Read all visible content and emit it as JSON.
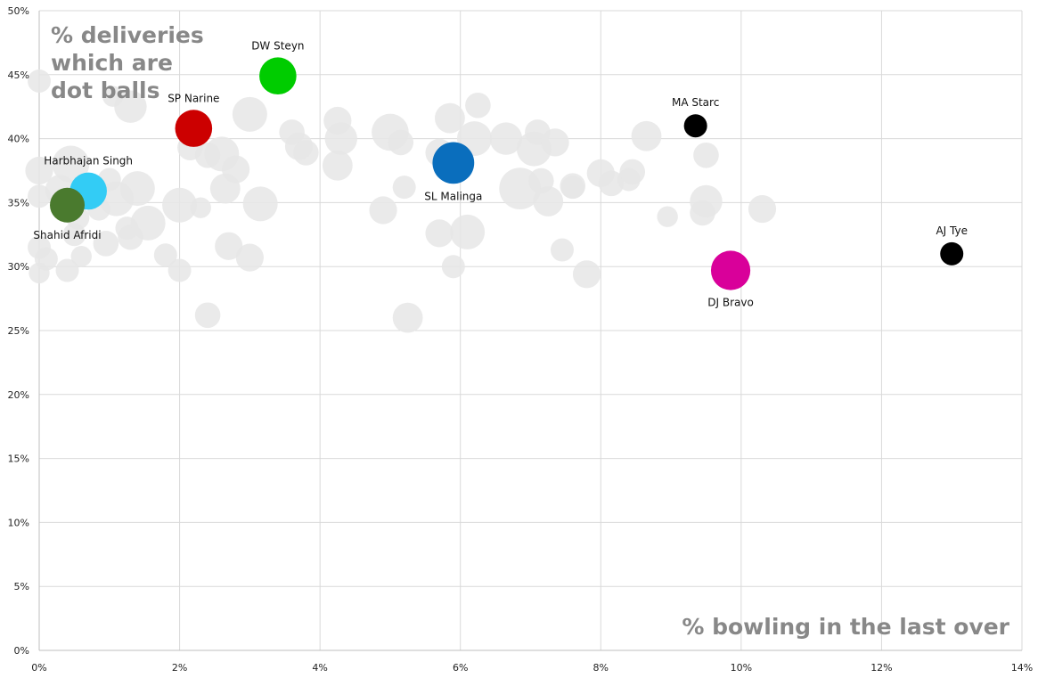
{
  "chart_data": {
    "type": "scatter",
    "title_lines": [
      "% deliveries",
      "which are",
      "dot balls"
    ],
    "xlabel": "% bowling in the last over",
    "ylabel": "% deliveries which are dot balls",
    "xlim": [
      0,
      14
    ],
    "ylim": [
      0,
      50
    ],
    "x_ticks": [
      0,
      2,
      4,
      6,
      8,
      10,
      12,
      14
    ],
    "y_ticks": [
      0,
      5,
      10,
      15,
      20,
      25,
      30,
      35,
      40,
      45,
      50
    ],
    "x_tick_labels": [
      "0%",
      "2%",
      "4%",
      "6%",
      "8%",
      "10%",
      "12%",
      "14%"
    ],
    "y_tick_labels": [
      "0%",
      "5%",
      "10%",
      "15%",
      "20%",
      "25%",
      "30%",
      "35%",
      "40%",
      "45%",
      "50%"
    ],
    "grid": true,
    "background_color": "#e6e6e6",
    "highlighted": [
      {
        "name": "DW Steyn",
        "x": 3.4,
        "y": 44.9,
        "size": 1.6,
        "color": "#00cc00",
        "label_pos": "above"
      },
      {
        "name": "SP Narine",
        "x": 2.2,
        "y": 40.8,
        "size": 1.6,
        "color": "#cc0000",
        "label_pos": "above"
      },
      {
        "name": "Harbhajan Singh",
        "x": 0.7,
        "y": 35.9,
        "size": 1.6,
        "color": "#33ccf5",
        "label_pos": "above"
      },
      {
        "name": "Shahid Afridi",
        "x": 0.4,
        "y": 34.8,
        "size": 1.5,
        "color": "#4a7a2e",
        "label_pos": "below"
      },
      {
        "name": "SL Malinga",
        "x": 5.9,
        "y": 38.1,
        "size": 1.8,
        "color": "#0a6ebd",
        "label_pos": "below"
      },
      {
        "name": "MA Starc",
        "x": 9.35,
        "y": 41.0,
        "size": 1.0,
        "color": "#000000",
        "label_pos": "above"
      },
      {
        "name": "DJ Bravo",
        "x": 9.85,
        "y": 29.7,
        "size": 1.7,
        "color": "#d9009a",
        "label_pos": "below"
      },
      {
        "name": "AJ Tye",
        "x": 13.0,
        "y": 31.0,
        "size": 1.0,
        "color": "#000000",
        "label_pos": "above"
      }
    ],
    "background_points": [
      {
        "x": 0.0,
        "y": 44.5,
        "size": 1.0
      },
      {
        "x": 0.0,
        "y": 37.5,
        "size": 1.2
      },
      {
        "x": 0.0,
        "y": 35.5,
        "size": 1.0
      },
      {
        "x": 0.0,
        "y": 31.5,
        "size": 1.0
      },
      {
        "x": 0.0,
        "y": 29.5,
        "size": 0.9
      },
      {
        "x": 0.1,
        "y": 30.6,
        "size": 1.0
      },
      {
        "x": 0.3,
        "y": 36.0,
        "size": 1.3
      },
      {
        "x": 0.45,
        "y": 38.0,
        "size": 1.6
      },
      {
        "x": 0.4,
        "y": 29.7,
        "size": 1.0
      },
      {
        "x": 0.5,
        "y": 32.5,
        "size": 1.0
      },
      {
        "x": 0.6,
        "y": 30.8,
        "size": 0.9
      },
      {
        "x": 0.55,
        "y": 33.8,
        "size": 1.0
      },
      {
        "x": 0.85,
        "y": 34.5,
        "size": 1.0
      },
      {
        "x": 0.95,
        "y": 31.8,
        "size": 1.1
      },
      {
        "x": 1.0,
        "y": 36.8,
        "size": 1.0
      },
      {
        "x": 1.05,
        "y": 43.3,
        "size": 0.9
      },
      {
        "x": 1.1,
        "y": 35.3,
        "size": 1.5
      },
      {
        "x": 1.3,
        "y": 42.5,
        "size": 1.4
      },
      {
        "x": 1.3,
        "y": 32.3,
        "size": 1.1
      },
      {
        "x": 1.25,
        "y": 33.0,
        "size": 1.0
      },
      {
        "x": 1.4,
        "y": 36.1,
        "size": 1.5
      },
      {
        "x": 1.55,
        "y": 33.4,
        "size": 1.5
      },
      {
        "x": 1.8,
        "y": 30.9,
        "size": 1.0
      },
      {
        "x": 2.0,
        "y": 34.8,
        "size": 1.5
      },
      {
        "x": 2.0,
        "y": 29.7,
        "size": 1.0
      },
      {
        "x": 2.15,
        "y": 39.3,
        "size": 1.1
      },
      {
        "x": 2.3,
        "y": 34.6,
        "size": 0.9
      },
      {
        "x": 2.4,
        "y": 26.2,
        "size": 1.1
      },
      {
        "x": 2.4,
        "y": 38.7,
        "size": 1.1
      },
      {
        "x": 2.6,
        "y": 38.8,
        "size": 1.5
      },
      {
        "x": 2.65,
        "y": 36.1,
        "size": 1.3
      },
      {
        "x": 2.7,
        "y": 31.6,
        "size": 1.2
      },
      {
        "x": 2.8,
        "y": 37.6,
        "size": 1.2
      },
      {
        "x": 3.0,
        "y": 41.9,
        "size": 1.5
      },
      {
        "x": 3.0,
        "y": 30.7,
        "size": 1.2
      },
      {
        "x": 3.15,
        "y": 34.9,
        "size": 1.5
      },
      {
        "x": 3.6,
        "y": 40.5,
        "size": 1.1
      },
      {
        "x": 3.7,
        "y": 39.4,
        "size": 1.2
      },
      {
        "x": 3.8,
        "y": 38.9,
        "size": 1.1
      },
      {
        "x": 4.25,
        "y": 41.4,
        "size": 1.2
      },
      {
        "x": 4.3,
        "y": 40.0,
        "size": 1.4
      },
      {
        "x": 4.25,
        "y": 37.9,
        "size": 1.3
      },
      {
        "x": 4.9,
        "y": 34.4,
        "size": 1.2
      },
      {
        "x": 5.0,
        "y": 40.5,
        "size": 1.6
      },
      {
        "x": 5.15,
        "y": 39.7,
        "size": 1.1
      },
      {
        "x": 5.2,
        "y": 36.2,
        "size": 1.0
      },
      {
        "x": 5.25,
        "y": 26.0,
        "size": 1.3
      },
      {
        "x": 5.7,
        "y": 32.6,
        "size": 1.2
      },
      {
        "x": 5.7,
        "y": 38.9,
        "size": 1.2
      },
      {
        "x": 5.85,
        "y": 41.6,
        "size": 1.3
      },
      {
        "x": 5.9,
        "y": 30.0,
        "size": 1.0
      },
      {
        "x": 6.1,
        "y": 32.7,
        "size": 1.5
      },
      {
        "x": 6.2,
        "y": 40.0,
        "size": 1.5
      },
      {
        "x": 6.25,
        "y": 42.6,
        "size": 1.1
      },
      {
        "x": 6.65,
        "y": 40.0,
        "size": 1.4
      },
      {
        "x": 6.85,
        "y": 36.1,
        "size": 1.8
      },
      {
        "x": 7.05,
        "y": 39.2,
        "size": 1.5
      },
      {
        "x": 7.1,
        "y": 40.5,
        "size": 1.1
      },
      {
        "x": 7.15,
        "y": 36.7,
        "size": 1.1
      },
      {
        "x": 7.25,
        "y": 35.1,
        "size": 1.3
      },
      {
        "x": 7.35,
        "y": 39.7,
        "size": 1.2
      },
      {
        "x": 7.45,
        "y": 31.3,
        "size": 1.0
      },
      {
        "x": 7.6,
        "y": 36.2,
        "size": 1.0
      },
      {
        "x": 7.6,
        "y": 36.3,
        "size": 1.1
      },
      {
        "x": 7.8,
        "y": 29.4,
        "size": 1.2
      },
      {
        "x": 8.0,
        "y": 37.3,
        "size": 1.2
      },
      {
        "x": 8.15,
        "y": 36.5,
        "size": 1.1
      },
      {
        "x": 8.4,
        "y": 36.8,
        "size": 1.0
      },
      {
        "x": 8.45,
        "y": 37.4,
        "size": 1.1
      },
      {
        "x": 8.65,
        "y": 40.2,
        "size": 1.3
      },
      {
        "x": 8.95,
        "y": 33.9,
        "size": 0.9
      },
      {
        "x": 9.45,
        "y": 34.2,
        "size": 1.1
      },
      {
        "x": 9.5,
        "y": 35.1,
        "size": 1.4
      },
      {
        "x": 9.5,
        "y": 38.7,
        "size": 1.1
      },
      {
        "x": 10.3,
        "y": 34.5,
        "size": 1.2
      }
    ]
  }
}
